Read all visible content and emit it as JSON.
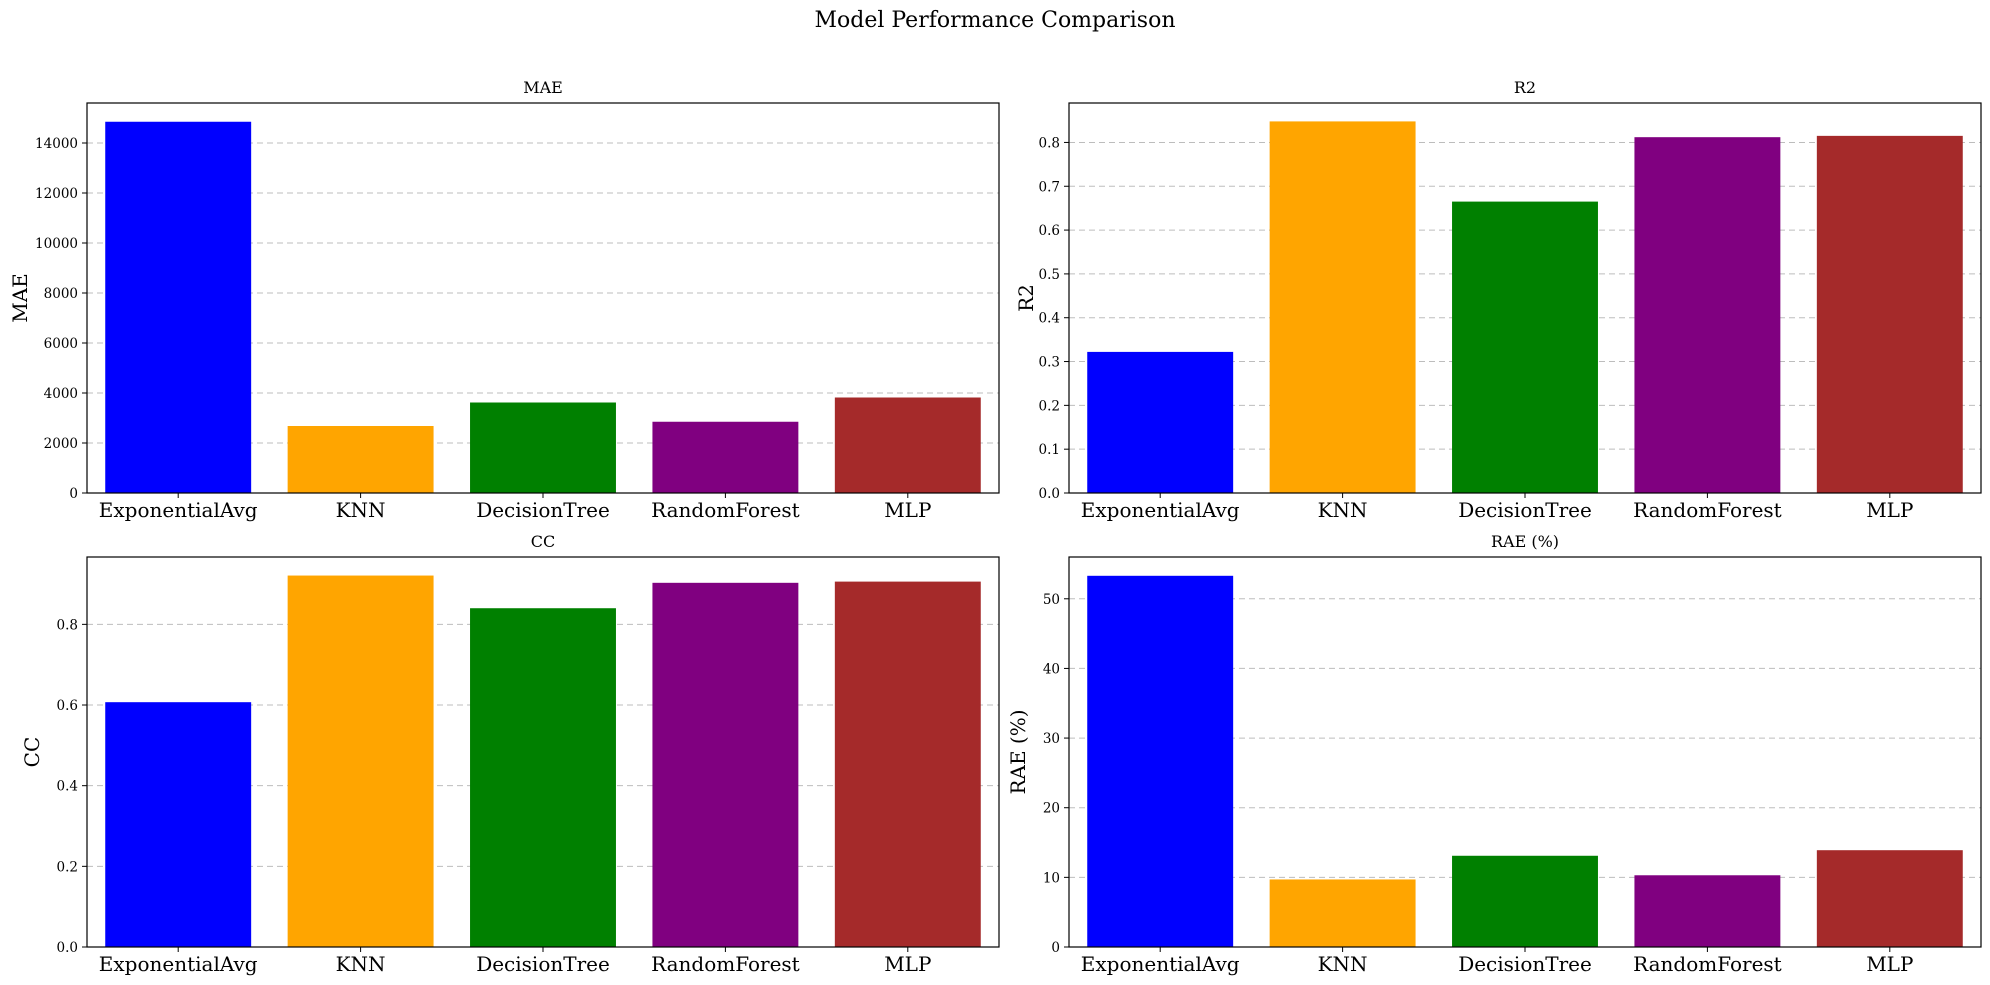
{
  "figure": {
    "title": "Model Performance Comparison"
  },
  "chart_data": [
    {
      "type": "bar",
      "title": "MAE",
      "ylabel": "MAE",
      "xlabel": "",
      "categories": [
        "ExponentialAvg",
        "KNN",
        "DecisionTree",
        "RandomForest",
        "MLP"
      ],
      "values": [
        14850,
        2680,
        3620,
        2850,
        3820
      ],
      "colors": [
        "#0000ff",
        "#ffa500",
        "#008000",
        "#800080",
        "#a52a2a"
      ],
      "yticks": [
        0,
        2000,
        4000,
        6000,
        8000,
        10000,
        12000,
        14000
      ],
      "ylim": [
        0,
        15600
      ],
      "grid": "y"
    },
    {
      "type": "bar",
      "title": "R2",
      "ylabel": "R2",
      "xlabel": "",
      "categories": [
        "ExponentialAvg",
        "KNN",
        "DecisionTree",
        "RandomForest",
        "MLP"
      ],
      "values": [
        0.322,
        0.848,
        0.665,
        0.812,
        0.815
      ],
      "colors": [
        "#0000ff",
        "#ffa500",
        "#008000",
        "#800080",
        "#a52a2a"
      ],
      "yticks": [
        0.0,
        0.1,
        0.2,
        0.3,
        0.4,
        0.5,
        0.6,
        0.7,
        0.8
      ],
      "ytick_labels": [
        "0.0",
        "0.1",
        "0.2",
        "0.3",
        "0.4",
        "0.5",
        "0.6",
        "0.7",
        "0.8"
      ],
      "ylim": [
        0,
        0.89
      ],
      "grid": "y"
    },
    {
      "type": "bar",
      "title": "CC",
      "ylabel": "CC",
      "xlabel": "",
      "categories": [
        "ExponentialAvg",
        "KNN",
        "DecisionTree",
        "RandomForest",
        "MLP"
      ],
      "values": [
        0.607,
        0.921,
        0.84,
        0.903,
        0.906
      ],
      "colors": [
        "#0000ff",
        "#ffa500",
        "#008000",
        "#800080",
        "#a52a2a"
      ],
      "yticks": [
        0.0,
        0.2,
        0.4,
        0.6,
        0.8
      ],
      "ytick_labels": [
        "0.0",
        "0.2",
        "0.4",
        "0.6",
        "0.8"
      ],
      "ylim": [
        0,
        0.967
      ],
      "grid": "y"
    },
    {
      "type": "bar",
      "title": "RAE (%)",
      "ylabel": "RAE (%)",
      "xlabel": "",
      "categories": [
        "ExponentialAvg",
        "KNN",
        "DecisionTree",
        "RandomForest",
        "MLP"
      ],
      "values": [
        53.3,
        9.7,
        13.1,
        10.3,
        13.9
      ],
      "colors": [
        "#0000ff",
        "#ffa500",
        "#008000",
        "#800080",
        "#a52a2a"
      ],
      "yticks": [
        0,
        10,
        20,
        30,
        40,
        50
      ],
      "ylim": [
        0,
        56
      ],
      "grid": "y"
    }
  ]
}
